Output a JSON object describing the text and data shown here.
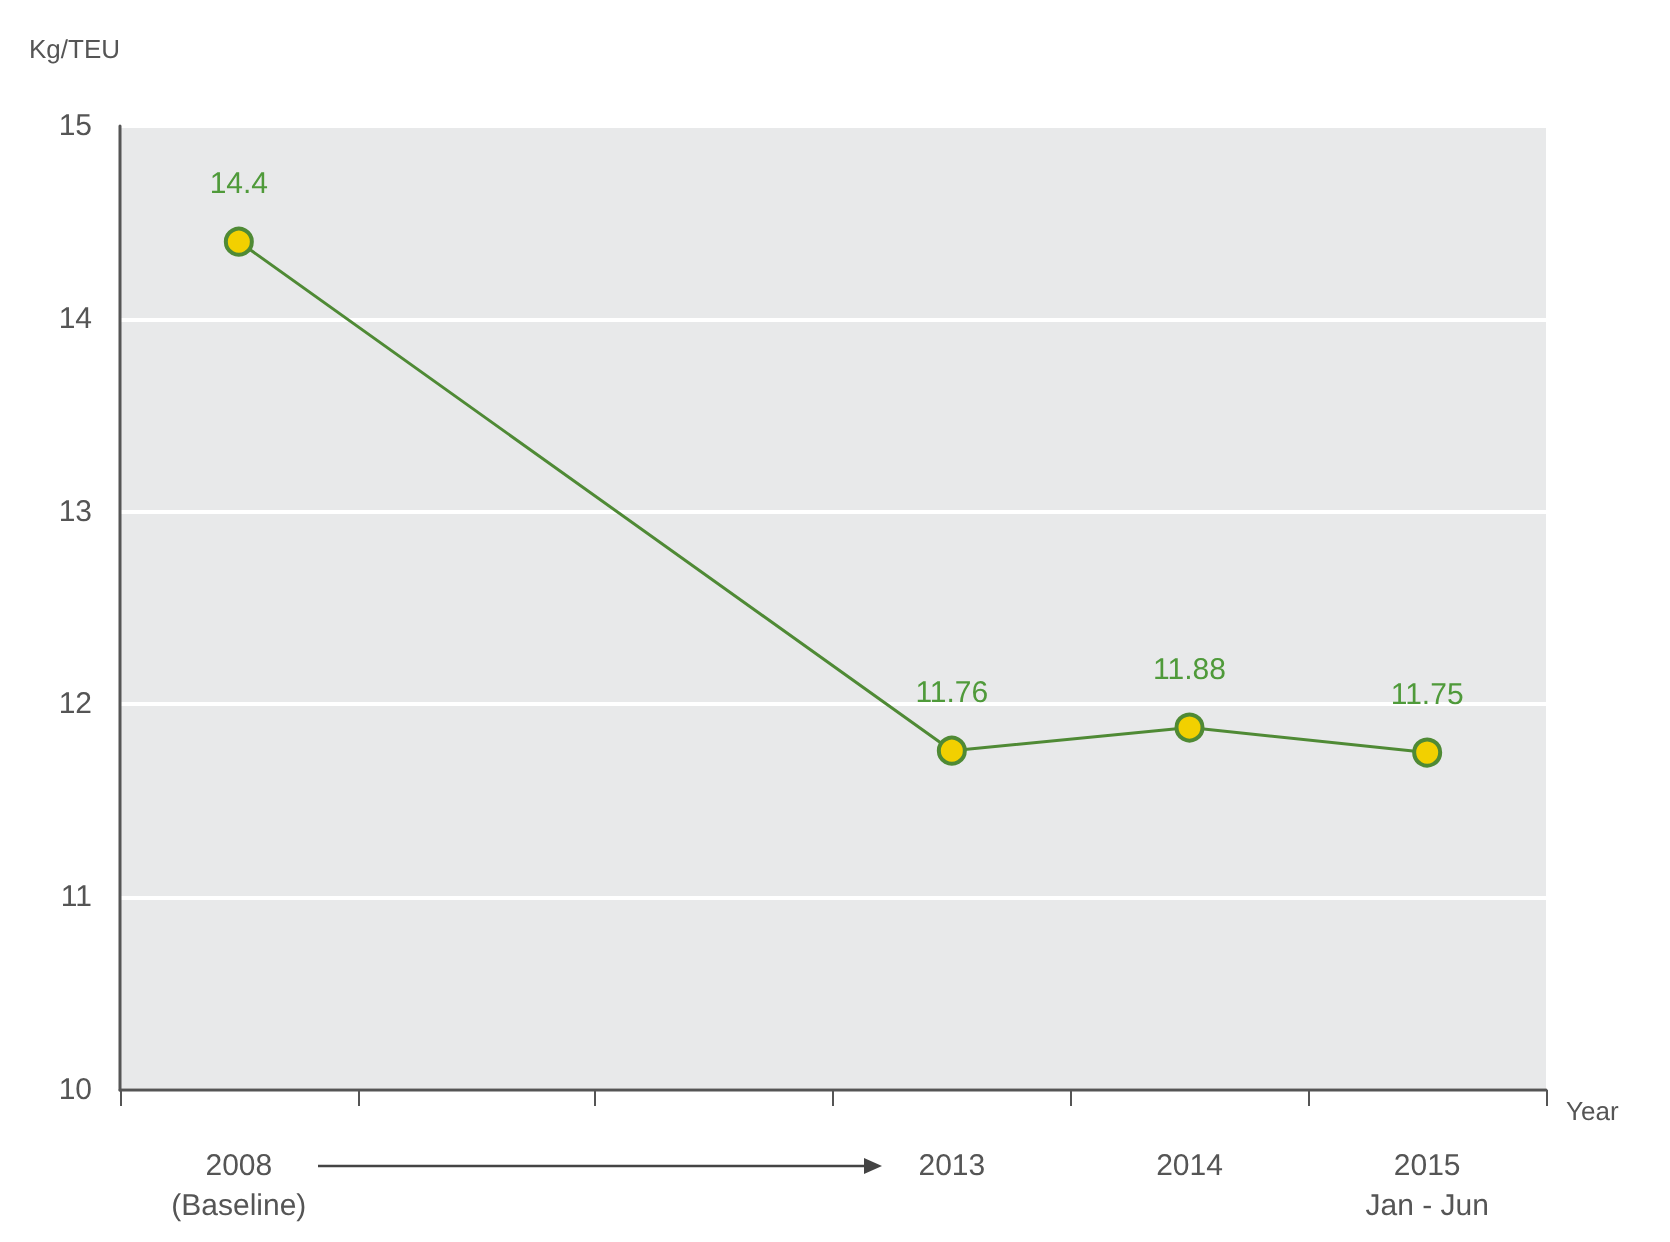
{
  "chart_data": {
    "type": "line",
    "ylabel": "Kg/TEU",
    "xlabel": "Year",
    "categories": [
      "2008\n(Baseline)",
      null,
      null,
      "2013",
      "2014",
      "2015\nJan - Jun"
    ],
    "series": [
      {
        "color": "#4f8a35",
        "values": [
          14.4,
          null,
          null,
          11.76,
          11.88,
          11.75
        ]
      }
    ],
    "ylim": [
      10,
      15
    ],
    "yticks": [
      10,
      11,
      12,
      13,
      14,
      15
    ],
    "grid": "y",
    "marker": "circle",
    "line_style": "solid",
    "data_labels": true
  }
}
